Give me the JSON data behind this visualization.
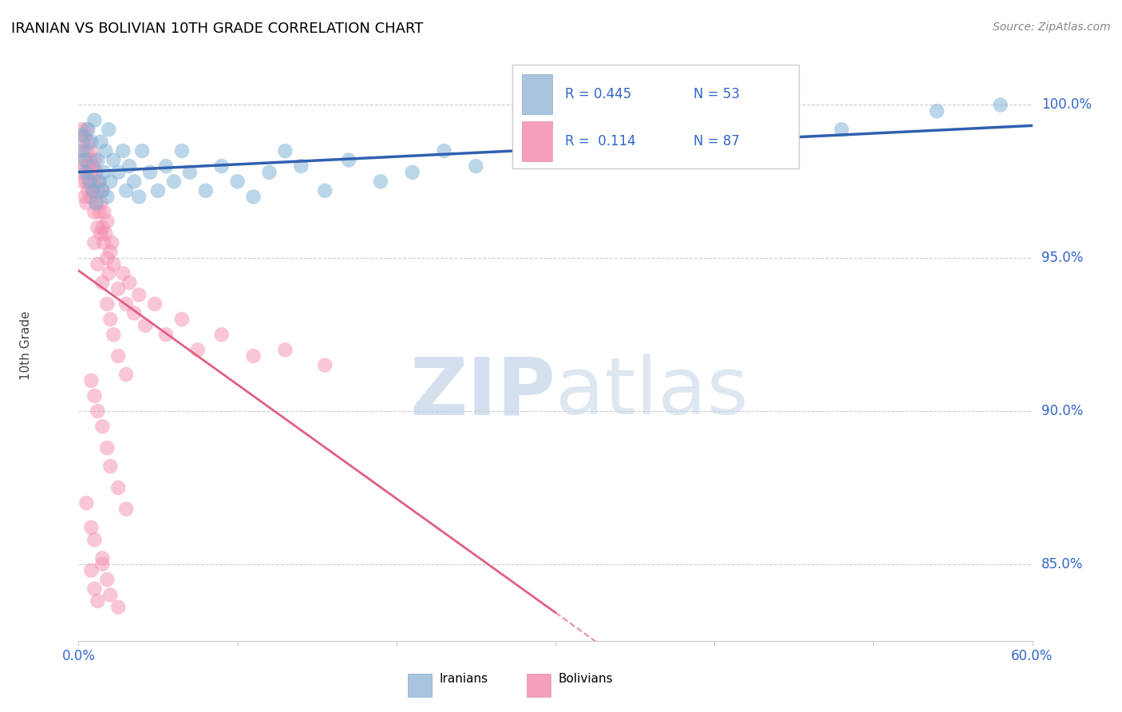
{
  "title": "IRANIAN VS BOLIVIAN 10TH GRADE CORRELATION CHART",
  "source": "Source: ZipAtlas.com",
  "ylabel": "10th Grade",
  "ytick_labels": [
    "85.0%",
    "90.0%",
    "95.0%",
    "100.0%"
  ],
  "ytick_values": [
    0.85,
    0.9,
    0.95,
    1.0
  ],
  "xlim": [
    0.0,
    0.6
  ],
  "ylim": [
    0.825,
    1.018
  ],
  "iranian_color": "#7BAFD4",
  "bolivian_color": "#F48FB1",
  "iranian_line_color": "#3060B0",
  "bolivian_line_color": "#E06080",
  "iranians_label": "Iranians",
  "bolivians_label": "Bolivians",
  "watermark_zip": "ZIP",
  "watermark_atlas": "atlas",
  "iranian_x": [
    0.002,
    0.003,
    0.004,
    0.005,
    0.006,
    0.007,
    0.008,
    0.009,
    0.01,
    0.011,
    0.012,
    0.013,
    0.014,
    0.015,
    0.016,
    0.017,
    0.018,
    0.019,
    0.02,
    0.022,
    0.025,
    0.028,
    0.03,
    0.032,
    0.035,
    0.038,
    0.04,
    0.045,
    0.05,
    0.055,
    0.06,
    0.065,
    0.07,
    0.08,
    0.09,
    0.1,
    0.11,
    0.12,
    0.13,
    0.14,
    0.155,
    0.17,
    0.19,
    0.21,
    0.23,
    0.25,
    0.28,
    0.32,
    0.37,
    0.42,
    0.48,
    0.54,
    0.58
  ],
  "iranian_y": [
    0.99,
    0.985,
    0.982,
    0.978,
    0.992,
    0.975,
    0.988,
    0.972,
    0.995,
    0.968,
    0.982,
    0.975,
    0.988,
    0.972,
    0.978,
    0.985,
    0.97,
    0.992,
    0.975,
    0.982,
    0.978,
    0.985,
    0.972,
    0.98,
    0.975,
    0.97,
    0.985,
    0.978,
    0.972,
    0.98,
    0.975,
    0.985,
    0.978,
    0.972,
    0.98,
    0.975,
    0.97,
    0.978,
    0.985,
    0.98,
    0.972,
    0.982,
    0.975,
    0.978,
    0.985,
    0.98,
    0.982,
    0.985,
    0.988,
    0.99,
    0.992,
    0.998,
    1.0
  ],
  "bolivian_x": [
    0.001,
    0.002,
    0.002,
    0.003,
    0.003,
    0.003,
    0.004,
    0.004,
    0.004,
    0.005,
    0.005,
    0.005,
    0.005,
    0.006,
    0.006,
    0.006,
    0.007,
    0.007,
    0.008,
    0.008,
    0.008,
    0.009,
    0.009,
    0.01,
    0.01,
    0.01,
    0.011,
    0.011,
    0.012,
    0.012,
    0.013,
    0.013,
    0.014,
    0.014,
    0.015,
    0.015,
    0.016,
    0.016,
    0.017,
    0.018,
    0.018,
    0.019,
    0.02,
    0.021,
    0.022,
    0.025,
    0.028,
    0.03,
    0.032,
    0.035,
    0.038,
    0.042,
    0.048,
    0.055,
    0.065,
    0.075,
    0.09,
    0.11,
    0.13,
    0.155,
    0.01,
    0.012,
    0.015,
    0.018,
    0.02,
    0.022,
    0.025,
    0.03,
    0.008,
    0.01,
    0.012,
    0.015,
    0.018,
    0.02,
    0.025,
    0.03,
    0.005,
    0.008,
    0.01,
    0.015,
    0.008,
    0.01,
    0.012,
    0.015,
    0.018,
    0.02,
    0.025
  ],
  "bolivian_y": [
    0.985,
    0.978,
    0.992,
    0.975,
    0.98,
    0.988,
    0.982,
    0.97,
    0.99,
    0.975,
    0.968,
    0.985,
    0.992,
    0.972,
    0.98,
    0.988,
    0.975,
    0.982,
    0.97,
    0.978,
    0.985,
    0.972,
    0.98,
    0.965,
    0.975,
    0.982,
    0.968,
    0.978,
    0.96,
    0.972,
    0.965,
    0.975,
    0.958,
    0.968,
    0.96,
    0.972,
    0.955,
    0.965,
    0.958,
    0.95,
    0.962,
    0.945,
    0.952,
    0.955,
    0.948,
    0.94,
    0.945,
    0.935,
    0.942,
    0.932,
    0.938,
    0.928,
    0.935,
    0.925,
    0.93,
    0.92,
    0.925,
    0.918,
    0.92,
    0.915,
    0.955,
    0.948,
    0.942,
    0.935,
    0.93,
    0.925,
    0.918,
    0.912,
    0.91,
    0.905,
    0.9,
    0.895,
    0.888,
    0.882,
    0.875,
    0.868,
    0.87,
    0.862,
    0.858,
    0.852,
    0.848,
    0.842,
    0.838,
    0.85,
    0.845,
    0.84,
    0.836
  ]
}
